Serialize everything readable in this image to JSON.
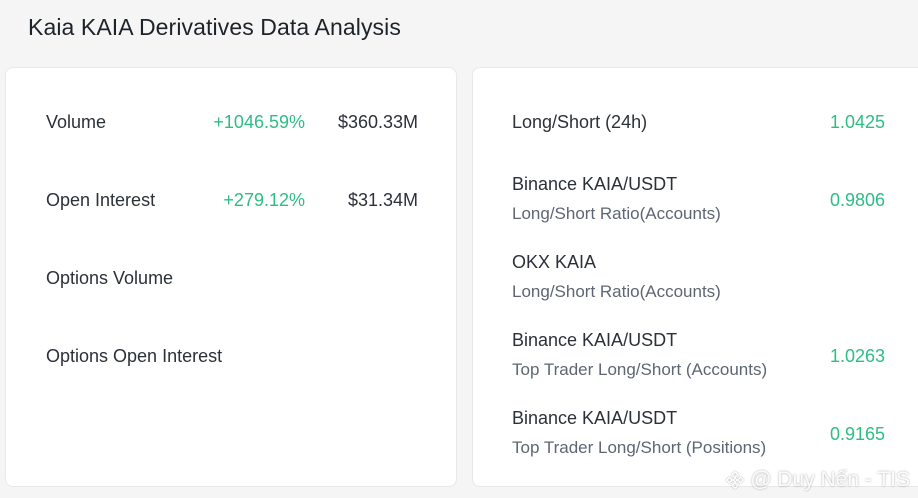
{
  "title": "Kaia KAIA Derivatives Data Analysis",
  "left_rows": [
    {
      "label": "Volume",
      "change": "+1046.59%",
      "value": "$360.33M"
    },
    {
      "label": "Open Interest",
      "change": "+279.12%",
      "value": "$31.34M"
    },
    {
      "label": "Options Volume",
      "change": "",
      "value": ""
    },
    {
      "label": "Options Open Interest",
      "change": "",
      "value": ""
    }
  ],
  "right_rows": [
    {
      "line1": "Long/Short (24h)",
      "line2": "",
      "value": "1.0425"
    },
    {
      "line1": "Binance KAIA/USDT",
      "line2": "Long/Short Ratio(Accounts)",
      "value": "0.9806"
    },
    {
      "line1": "OKX KAIA",
      "line2": "Long/Short Ratio(Accounts)",
      "value": ""
    },
    {
      "line1": "Binance KAIA/USDT",
      "line2": "Top Trader Long/Short (Accounts)",
      "value": "1.0263"
    },
    {
      "line1": "Binance KAIA/USDT",
      "line2": "Top Trader Long/Short (Positions)",
      "value": "0.9165"
    }
  ],
  "watermark": "@ Duy Nến - TIS",
  "colors": {
    "positive": "#2ebd85",
    "text": "#2b3139",
    "muted": "#5e6673"
  }
}
